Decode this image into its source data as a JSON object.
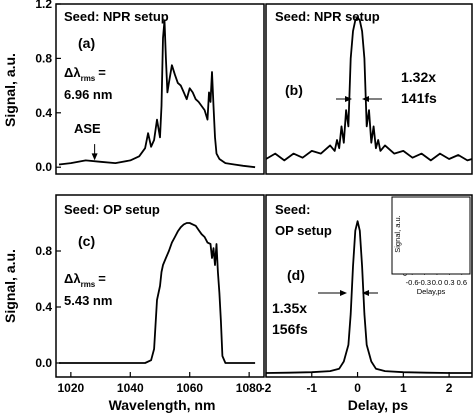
{
  "chart_data": [
    {
      "type": "line",
      "panel": "(a)",
      "title": "Seed: NPR setup",
      "xlim": [
        1015,
        1085
      ],
      "ylim": [
        -0.05,
        1.2
      ],
      "yticks": [
        "0.0",
        "0.4",
        "0.8",
        "1.2"
      ],
      "ytick_values": [
        0,
        0.4,
        0.8,
        1.2
      ],
      "ylabel": "Signal, a.u.",
      "annotations": {
        "delta_symbol": "Δλ",
        "delta_sub": "rms",
        "delta_eq": "=",
        "delta_value": "6.96 nm",
        "ase": "ASE",
        "ase_pos": [
          1028,
          0.17
        ]
      },
      "series": [
        {
          "x": [
            1016,
            1020,
            1025,
            1030,
            1035,
            1040,
            1043,
            1045,
            1046,
            1047,
            1048,
            1049,
            1050,
            1050.5,
            1051,
            1051.5,
            1052,
            1052.5,
            1053,
            1054,
            1055,
            1056,
            1057,
            1058,
            1059,
            1060,
            1061,
            1062,
            1063,
            1064,
            1065,
            1066,
            1066.5,
            1067,
            1067.5,
            1068,
            1068.5,
            1069,
            1070,
            1072,
            1075,
            1078,
            1082
          ],
          "y": [
            0.02,
            0.03,
            0.05,
            0.04,
            0.03,
            0.05,
            0.08,
            0.14,
            0.25,
            0.15,
            0.2,
            0.35,
            0.22,
            0.45,
            0.95,
            1.08,
            0.8,
            0.55,
            0.62,
            0.75,
            0.68,
            0.62,
            0.6,
            0.55,
            0.5,
            0.58,
            0.55,
            0.5,
            0.48,
            0.45,
            0.42,
            0.35,
            0.55,
            0.48,
            0.7,
            0.45,
            0.22,
            0.1,
            0.06,
            0.03,
            0.02,
            0.01,
            0.0
          ]
        }
      ]
    },
    {
      "type": "line",
      "panel": "(b)",
      "title": "Seed: NPR setup",
      "xlim": [
        -2,
        2.5
      ],
      "ylim": [
        -0.05,
        1.2
      ],
      "annotations": {
        "width_factor": "1.32x",
        "width_value": "141fs"
      },
      "series": [
        {
          "x": [
            -2,
            -1.8,
            -1.6,
            -1.4,
            -1.2,
            -1.0,
            -0.8,
            -0.6,
            -0.5,
            -0.45,
            -0.4,
            -0.35,
            -0.3,
            -0.25,
            -0.2,
            -0.15,
            -0.1,
            -0.05,
            0,
            0.05,
            0.1,
            0.15,
            0.2,
            0.25,
            0.3,
            0.35,
            0.4,
            0.45,
            0.5,
            0.6,
            0.8,
            1.0,
            1.2,
            1.4,
            1.6,
            1.8,
            2.0,
            2.2,
            2.4,
            2.5
          ],
          "y": [
            0.06,
            0.1,
            0.05,
            0.1,
            0.07,
            0.12,
            0.1,
            0.16,
            0.12,
            0.2,
            0.14,
            0.3,
            0.18,
            0.42,
            0.3,
            0.8,
            1.0,
            1.08,
            1.1,
            1.08,
            1.0,
            0.8,
            0.3,
            0.42,
            0.18,
            0.3,
            0.14,
            0.2,
            0.12,
            0.16,
            0.1,
            0.12,
            0.07,
            0.1,
            0.05,
            0.1,
            0.06,
            0.09,
            0.05,
            0.06
          ]
        }
      ]
    },
    {
      "type": "line",
      "panel": "(c)",
      "title": "Seed: OP setup",
      "xlim": [
        1015,
        1085
      ],
      "ylim": [
        -0.1,
        1.2
      ],
      "xticks": [
        "1020",
        "1040",
        "1060",
        "1080"
      ],
      "xtick_values": [
        1020,
        1040,
        1060,
        1080
      ],
      "yticks": [
        "0.0",
        "0.4",
        "0.8"
      ],
      "ytick_values": [
        0,
        0.4,
        0.8
      ],
      "xlabel": "Wavelength, nm",
      "ylabel": "Signal, a.u.",
      "annotations": {
        "delta_symbol": "Δλ",
        "delta_sub": "rms",
        "delta_eq": "=",
        "delta_value": "5.43 nm"
      },
      "series": [
        {
          "x": [
            1016,
            1020,
            1030,
            1040,
            1045,
            1047,
            1048,
            1049,
            1050,
            1050.5,
            1051,
            1052,
            1053,
            1054,
            1055,
            1056,
            1057,
            1058,
            1059,
            1060,
            1061,
            1062,
            1063,
            1064,
            1065,
            1066,
            1067,
            1067.5,
            1068,
            1068.5,
            1069,
            1069.5,
            1070,
            1070.5,
            1071,
            1072,
            1075,
            1082
          ],
          "y": [
            0,
            0,
            0,
            0,
            0,
            0.02,
            0.1,
            0.45,
            0.55,
            0.65,
            0.7,
            0.75,
            0.8,
            0.86,
            0.9,
            0.94,
            0.97,
            0.99,
            1.0,
            1.0,
            0.99,
            0.98,
            0.95,
            0.92,
            0.9,
            0.86,
            0.85,
            0.75,
            0.82,
            0.7,
            0.85,
            0.65,
            0.5,
            0.3,
            0.05,
            0,
            0,
            0
          ]
        }
      ]
    },
    {
      "type": "line",
      "panel": "(d)",
      "title": "Seed:",
      "title_line2": "OP  setup",
      "xlim": [
        -2,
        2.5
      ],
      "ylim": [
        -0.15,
        7.5
      ],
      "xticks": [
        "-2",
        "-1",
        "0",
        "1",
        "2"
      ],
      "xtick_values": [
        -2,
        -1,
        0,
        1,
        2
      ],
      "xlabel": "Delay, ps",
      "annotations": {
        "width_factor": "1.35x",
        "width_value": "156fs"
      },
      "series": [
        {
          "x": [
            -2,
            -1.5,
            -1.0,
            -0.6,
            -0.4,
            -0.3,
            -0.2,
            -0.15,
            -0.1,
            -0.05,
            0,
            0.05,
            0.1,
            0.15,
            0.2,
            0.3,
            0.4,
            0.6,
            1.0,
            1.5,
            2.0,
            2.5
          ],
          "y": [
            0.02,
            0.03,
            0.05,
            0.1,
            0.2,
            0.5,
            1.2,
            2.5,
            4.5,
            6.0,
            6.4,
            6.0,
            4.5,
            2.5,
            1.2,
            0.5,
            0.2,
            0.1,
            0.05,
            0.03,
            0.02,
            0.02
          ]
        }
      ],
      "inset": {
        "xlim": [
          -0.7,
          0.75
        ],
        "ylim": [
          -0.5,
          8.5
        ],
        "xticks": [
          "-0.6",
          "-0.3",
          "0.0",
          "0.3",
          "0.6"
        ],
        "xtick_values": [
          -0.6,
          -0.3,
          0,
          0.3,
          0.6
        ],
        "yticks": [
          "0",
          "2",
          "4",
          "6",
          "8"
        ],
        "ytick_values": [
          0,
          2,
          4,
          6,
          8
        ],
        "xlabel": "Delay,ps",
        "ylabel": "Signal, a.u.",
        "series": [
          {
            "x": [
              -0.7,
              -0.5,
              -0.4,
              -0.3,
              -0.2,
              -0.15,
              -0.1,
              -0.05,
              0,
              0.05,
              0.1,
              0.15,
              0.2,
              0.3,
              0.4,
              0.5,
              0.7
            ],
            "y": [
              1.0,
              1.0,
              1.05,
              1.2,
              1.8,
              2.8,
              4.5,
              6.5,
              7.6,
              6.5,
              4.5,
              2.8,
              1.8,
              1.3,
              1.5,
              1.7,
              1.9
            ]
          },
          {
            "x": [
              -0.7,
              -0.5,
              -0.4,
              -0.3,
              -0.2,
              -0.1,
              0,
              0.1,
              0.2,
              0.3,
              0.4,
              0.5,
              0.7
            ],
            "y": [
              1.5,
              1.5,
              1.45,
              1.35,
              1.2,
              0.9,
              0.8,
              0.9,
              1.2,
              1.3,
              1.2,
              1.15,
              1.1
            ]
          }
        ]
      }
    }
  ]
}
